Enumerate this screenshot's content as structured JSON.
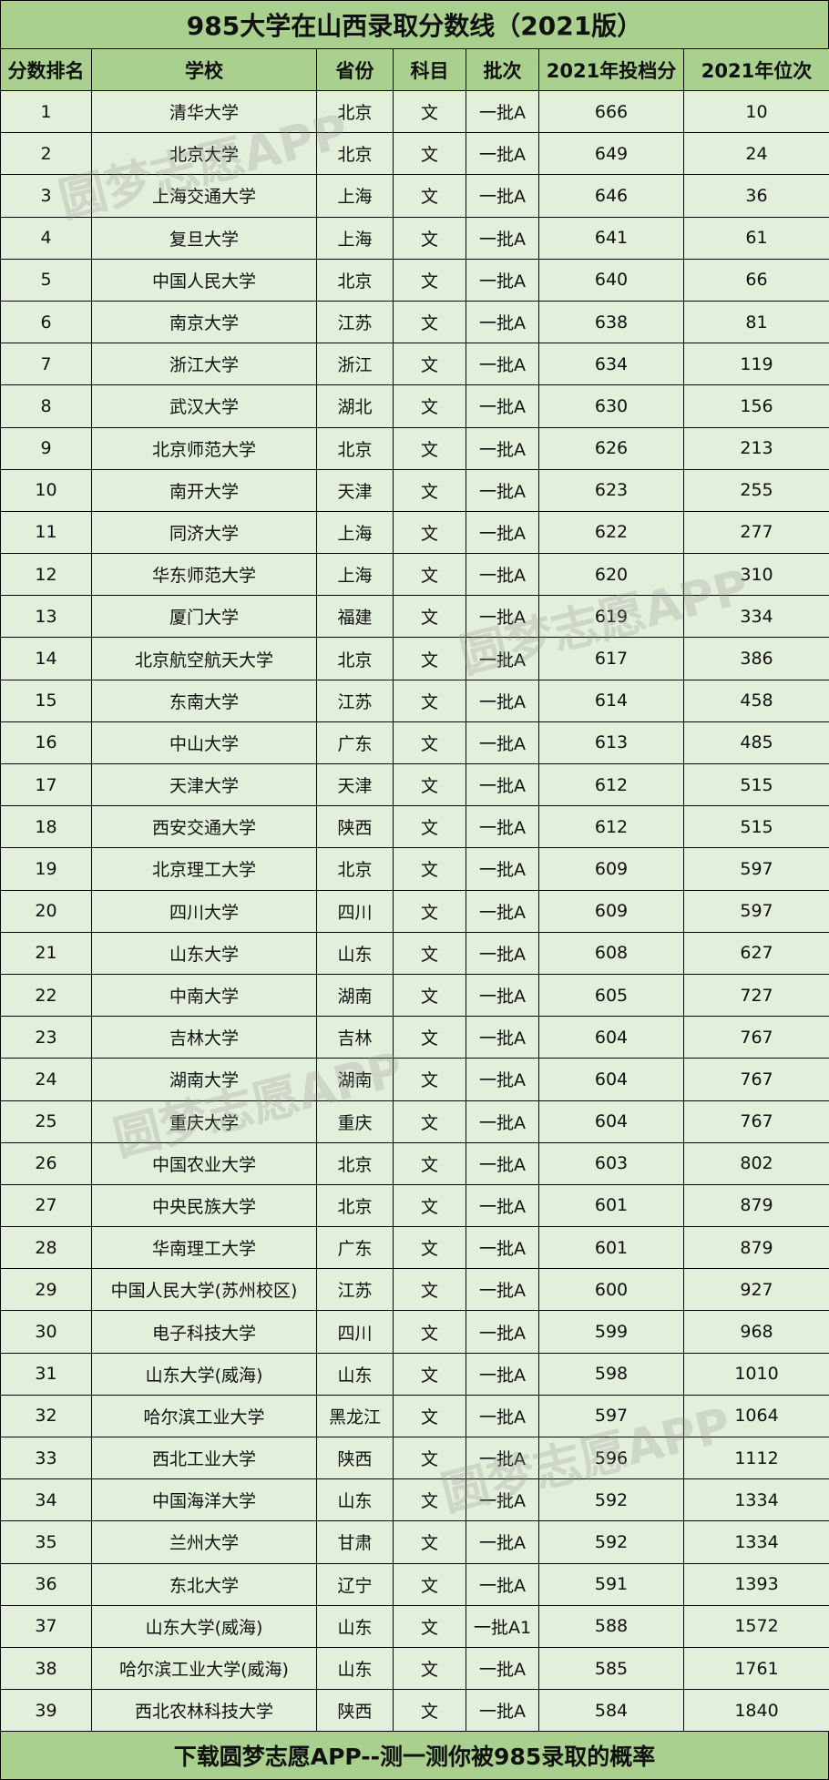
{
  "title": "985大学在山西录取分数线（2021版）",
  "headers": [
    "分数排名",
    "学校",
    "省份",
    "科目",
    "批次",
    "2021年投档分",
    "2021年位次"
  ],
  "rows": [
    [
      "1",
      "清华大学",
      "北京",
      "文",
      "一批A",
      "666",
      "10"
    ],
    [
      "2",
      "北京大学",
      "北京",
      "文",
      "一批A",
      "649",
      "24"
    ],
    [
      "3",
      "上海交通大学",
      "上海",
      "文",
      "一批A",
      "646",
      "36"
    ],
    [
      "4",
      "复旦大学",
      "上海",
      "文",
      "一批A",
      "641",
      "61"
    ],
    [
      "5",
      "中国人民大学",
      "北京",
      "文",
      "一批A",
      "640",
      "66"
    ],
    [
      "6",
      "南京大学",
      "江苏",
      "文",
      "一批A",
      "638",
      "81"
    ],
    [
      "7",
      "浙江大学",
      "浙江",
      "文",
      "一批A",
      "634",
      "119"
    ],
    [
      "8",
      "武汉大学",
      "湖北",
      "文",
      "一批A",
      "630",
      "156"
    ],
    [
      "9",
      "北京师范大学",
      "北京",
      "文",
      "一批A",
      "626",
      "213"
    ],
    [
      "10",
      "南开大学",
      "天津",
      "文",
      "一批A",
      "623",
      "255"
    ],
    [
      "11",
      "同济大学",
      "上海",
      "文",
      "一批A",
      "622",
      "277"
    ],
    [
      "12",
      "华东师范大学",
      "上海",
      "文",
      "一批A",
      "620",
      "310"
    ],
    [
      "13",
      "厦门大学",
      "福建",
      "文",
      "一批A",
      "619",
      "334"
    ],
    [
      "14",
      "北京航空航天大学",
      "北京",
      "文",
      "一批A",
      "617",
      "386"
    ],
    [
      "15",
      "东南大学",
      "江苏",
      "文",
      "一批A",
      "614",
      "458"
    ],
    [
      "16",
      "中山大学",
      "广东",
      "文",
      "一批A",
      "613",
      "485"
    ],
    [
      "17",
      "天津大学",
      "天津",
      "文",
      "一批A",
      "612",
      "515"
    ],
    [
      "18",
      "西安交通大学",
      "陕西",
      "文",
      "一批A",
      "612",
      "515"
    ],
    [
      "19",
      "北京理工大学",
      "北京",
      "文",
      "一批A",
      "609",
      "597"
    ],
    [
      "20",
      "四川大学",
      "四川",
      "文",
      "一批A",
      "609",
      "597"
    ],
    [
      "21",
      "山东大学",
      "山东",
      "文",
      "一批A",
      "608",
      "627"
    ],
    [
      "22",
      "中南大学",
      "湖南",
      "文",
      "一批A",
      "605",
      "727"
    ],
    [
      "23",
      "吉林大学",
      "吉林",
      "文",
      "一批A",
      "604",
      "767"
    ],
    [
      "24",
      "湖南大学",
      "湖南",
      "文",
      "一批A",
      "604",
      "767"
    ],
    [
      "25",
      "重庆大学",
      "重庆",
      "文",
      "一批A",
      "604",
      "767"
    ],
    [
      "26",
      "中国农业大学",
      "北京",
      "文",
      "一批A",
      "603",
      "802"
    ],
    [
      "27",
      "中央民族大学",
      "北京",
      "文",
      "一批A",
      "601",
      "879"
    ],
    [
      "28",
      "华南理工大学",
      "广东",
      "文",
      "一批A",
      "601",
      "879"
    ],
    [
      "29",
      "中国人民大学(苏州校区)",
      "江苏",
      "文",
      "一批A",
      "600",
      "927"
    ],
    [
      "30",
      "电子科技大学",
      "四川",
      "文",
      "一批A",
      "599",
      "968"
    ],
    [
      "31",
      "山东大学(威海)",
      "山东",
      "文",
      "一批A",
      "598",
      "1010"
    ],
    [
      "32",
      "哈尔滨工业大学",
      "黑龙江",
      "文",
      "一批A",
      "597",
      "1064"
    ],
    [
      "33",
      "西北工业大学",
      "陕西",
      "文",
      "一批A",
      "596",
      "1112"
    ],
    [
      "34",
      "中国海洋大学",
      "山东",
      "文",
      "一批A",
      "592",
      "1334"
    ],
    [
      "35",
      "兰州大学",
      "甘肃",
      "文",
      "一批A",
      "592",
      "1334"
    ],
    [
      "36",
      "东北大学",
      "辽宁",
      "文",
      "一批A",
      "591",
      "1393"
    ],
    [
      "37",
      "山东大学(威海)",
      "山东",
      "文",
      "一批A1",
      "588",
      "1572"
    ],
    [
      "38",
      "哈尔滨工业大学(威海)",
      "山东",
      "文",
      "一批A",
      "585",
      "1761"
    ],
    [
      "39",
      "西北农林科技大学",
      "陕西",
      "文",
      "一批A",
      "584",
      "1840"
    ]
  ],
  "footer": "下载圆梦志愿APP--测一测你被985录取的概率",
  "watermark": "圆梦志愿APP",
  "colors": {
    "header_bg": "#a9d08e",
    "body_bg": "#e2efda"
  }
}
